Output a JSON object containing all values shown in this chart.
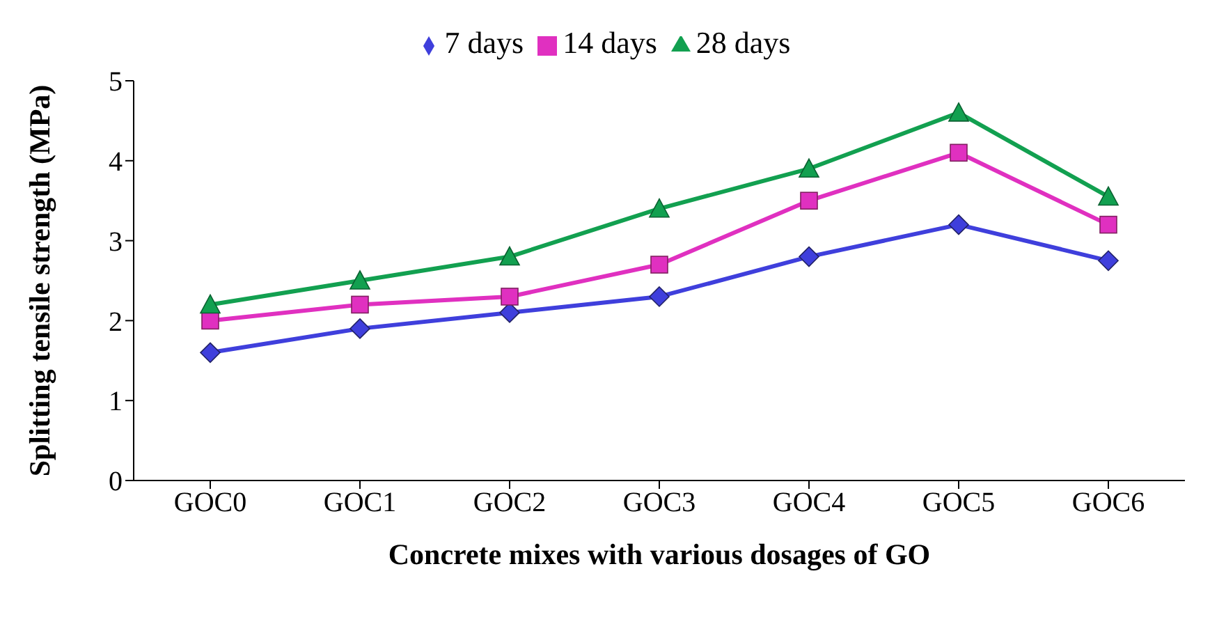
{
  "chart_data": {
    "type": "line",
    "xlabel": "Concrete mixes with various dosages of GO",
    "ylabel": "Splitting tensile strength (MPa)",
    "categories": [
      "GOC0",
      "GOC1",
      "GOC2",
      "GOC3",
      "GOC4",
      "GOC5",
      "GOC6"
    ],
    "series": [
      {
        "name": "7 days",
        "color": "#3f3fdc",
        "marker": "diamond",
        "values": [
          1.6,
          1.9,
          2.1,
          2.3,
          2.8,
          3.2,
          2.75
        ]
      },
      {
        "name": "14 days",
        "color": "#e030c0",
        "marker": "square",
        "values": [
          2.0,
          2.2,
          2.3,
          2.7,
          3.5,
          4.1,
          3.2
        ]
      },
      {
        "name": "28 days",
        "color": "#12a050",
        "marker": "triangle",
        "values": [
          2.2,
          2.5,
          2.8,
          3.4,
          3.9,
          4.6,
          3.55
        ]
      }
    ],
    "ylim": [
      0,
      5
    ],
    "yticks": [
      0,
      1,
      2,
      3,
      4,
      5
    ],
    "grid": false,
    "legend": "top",
    "line_style": "solid"
  }
}
